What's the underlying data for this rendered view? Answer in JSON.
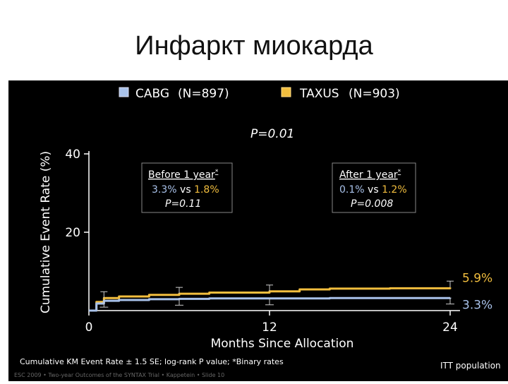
{
  "slide": {
    "title": "Инфаркт миокарда"
  },
  "colors": {
    "cabg": "#a9c2ea",
    "taxus": "#f2be3e",
    "background": "#000000",
    "axis": "#ffffff"
  },
  "legend": [
    {
      "label": "CABG",
      "n": "(N=897)",
      "color": "#a9c2ea"
    },
    {
      "label": "TAXUS",
      "n": "(N=903)",
      "color": "#f2be3e"
    }
  ],
  "chart_data": {
    "type": "line",
    "xlabel": "Months Since Allocation",
    "ylabel": "Cumulative Event Rate (%)",
    "xlim": [
      0,
      24
    ],
    "ylim": [
      0,
      40
    ],
    "xticks": [
      "0",
      "12",
      "24"
    ],
    "yticks": [
      "20",
      "40"
    ],
    "pvalue": "P=0.01",
    "series": [
      {
        "name": "TAXUS",
        "color": "#f2be3e",
        "end_label": "5.9%",
        "x": [
          0,
          0.5,
          1,
          2,
          4,
          6,
          8,
          12,
          14,
          16,
          20,
          24
        ],
        "y": [
          0,
          2.2,
          3.2,
          3.6,
          4.0,
          4.3,
          4.6,
          4.9,
          5.4,
          5.6,
          5.7,
          5.9
        ]
      },
      {
        "name": "CABG",
        "color": "#a9c2ea",
        "end_label": "3.3%",
        "x": [
          0,
          0.5,
          1,
          2,
          4,
          6,
          8,
          12,
          16,
          20,
          24
        ],
        "y": [
          0,
          1.8,
          2.5,
          2.7,
          2.9,
          3.0,
          3.1,
          3.1,
          3.2,
          3.2,
          3.3
        ]
      }
    ],
    "annotations": [
      {
        "heading": "Before 1 year",
        "mark": "*",
        "left_value": "3.3%",
        "vs": " vs ",
        "right_value": "1.8%",
        "p": "P=0.11"
      },
      {
        "heading": "After 1 year",
        "mark": "*",
        "left_value": "0.1%",
        "vs": " vs ",
        "right_value": "1.2%",
        "p": "P=0.008"
      }
    ]
  },
  "footer": {
    "note": "Cumulative KM Event Rate ± 1.5 SE; log-rank P value; *Binary rates",
    "population": "ITT population",
    "source": "ESC 2009 • Two-year Outcomes of the SYNTAX Trial • Kappetein • Slide 10"
  }
}
